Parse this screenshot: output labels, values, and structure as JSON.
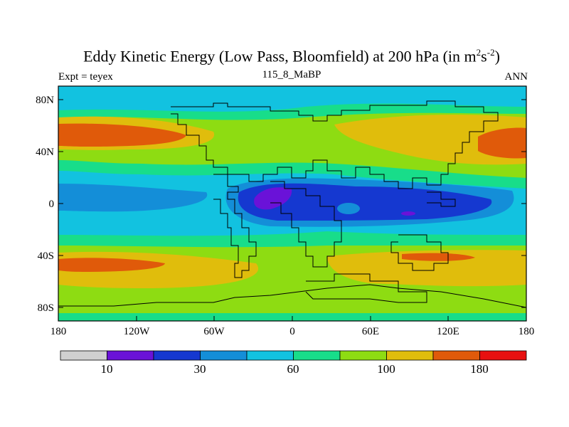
{
  "title": {
    "main": "Eddy Kinetic Energy (Low Pass, Bloomfield) at 200 hPa (in m",
    "sup1": "2",
    "mid": "s",
    "sup2": "-2",
    "close": ")"
  },
  "subtitle_left": "Expt = teyex",
  "subtitle_center": "115_8_MaBP",
  "subtitle_right": "ANN",
  "y_ticks": [
    "80N",
    "40N",
    "0",
    "40S",
    "80S"
  ],
  "x_ticks": [
    "180",
    "120W",
    "60W",
    "0",
    "60E",
    "120E",
    "180"
  ],
  "colorbar": {
    "colors": [
      "#d0d0d0",
      "#6a12d8",
      "#1538d0",
      "#148ed8",
      "#12c2e0",
      "#18dd8a",
      "#8edc12",
      "#e0bd0c",
      "#e05a0a",
      "#e81010"
    ],
    "labels": [
      "10",
      "30",
      "60",
      "100",
      "180"
    ]
  },
  "map_colors": {
    "lightblue": "#12c2e0",
    "teal": "#18dd8a",
    "green": "#8edc12",
    "yellow": "#e0bd0c",
    "orange": "#e05a0a",
    "blue": "#148ed8",
    "darkblue": "#1538d0",
    "purple": "#6a12d8"
  }
}
